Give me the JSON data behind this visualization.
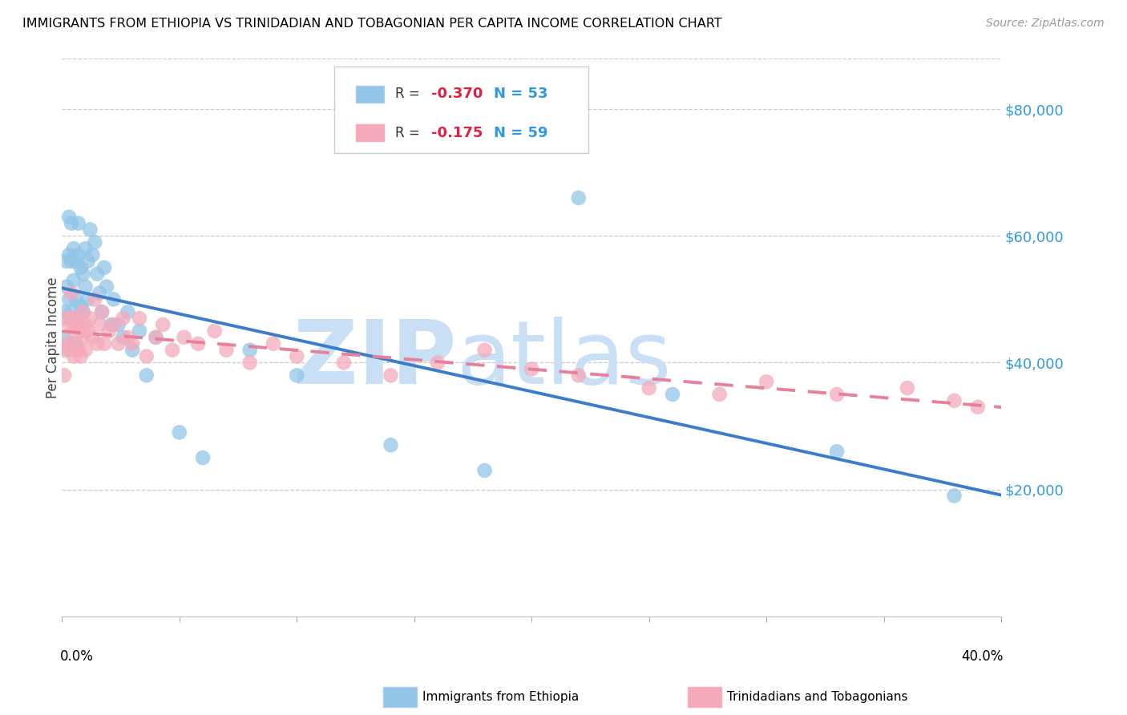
{
  "title": "IMMIGRANTS FROM ETHIOPIA VS TRINIDADIAN AND TOBAGONIAN PER CAPITA INCOME CORRELATION CHART",
  "source": "Source: ZipAtlas.com",
  "ylabel": "Per Capita Income",
  "yticks": [
    20000,
    40000,
    60000,
    80000
  ],
  "ytick_labels": [
    "$20,000",
    "$40,000",
    "$60,000",
    "$80,000"
  ],
  "xlim": [
    0.0,
    0.4
  ],
  "ylim": [
    0,
    88000
  ],
  "legend_label1": "Immigrants from Ethiopia",
  "legend_label2": "Trinidadians and Tobagonians",
  "r1": "-0.370",
  "n1": "53",
  "r2": "-0.175",
  "n2": "59",
  "color_blue": "#92C5E8",
  "color_pink": "#F4AABB",
  "line_color_blue": "#3B7DC8",
  "line_color_pink": "#E8809A",
  "ethiopia_x": [
    0.001,
    0.001,
    0.002,
    0.002,
    0.003,
    0.003,
    0.003,
    0.004,
    0.004,
    0.004,
    0.005,
    0.005,
    0.005,
    0.005,
    0.006,
    0.006,
    0.007,
    0.007,
    0.008,
    0.008,
    0.009,
    0.009,
    0.01,
    0.01,
    0.011,
    0.011,
    0.012,
    0.013,
    0.014,
    0.015,
    0.016,
    0.017,
    0.018,
    0.019,
    0.021,
    0.022,
    0.024,
    0.026,
    0.028,
    0.03,
    0.033,
    0.036,
    0.04,
    0.05,
    0.06,
    0.08,
    0.1,
    0.14,
    0.18,
    0.22,
    0.26,
    0.33,
    0.38
  ],
  "ethiopia_y": [
    48000,
    44000,
    56000,
    52000,
    63000,
    57000,
    50000,
    62000,
    56000,
    48000,
    58000,
    53000,
    47000,
    43000,
    56000,
    50000,
    62000,
    57000,
    55000,
    49000,
    54000,
    48000,
    58000,
    52000,
    56000,
    50000,
    61000,
    57000,
    59000,
    54000,
    51000,
    48000,
    55000,
    52000,
    46000,
    50000,
    46000,
    44000,
    48000,
    42000,
    45000,
    38000,
    44000,
    29000,
    25000,
    42000,
    38000,
    27000,
    23000,
    66000,
    35000,
    26000,
    19000
  ],
  "tt_x": [
    0.001,
    0.001,
    0.002,
    0.002,
    0.003,
    0.003,
    0.004,
    0.004,
    0.005,
    0.005,
    0.006,
    0.006,
    0.007,
    0.007,
    0.008,
    0.008,
    0.009,
    0.009,
    0.01,
    0.01,
    0.011,
    0.012,
    0.013,
    0.014,
    0.015,
    0.016,
    0.017,
    0.018,
    0.02,
    0.022,
    0.024,
    0.026,
    0.028,
    0.03,
    0.033,
    0.036,
    0.04,
    0.043,
    0.047,
    0.052,
    0.058,
    0.065,
    0.07,
    0.08,
    0.09,
    0.1,
    0.12,
    0.14,
    0.16,
    0.18,
    0.2,
    0.22,
    0.25,
    0.28,
    0.3,
    0.33,
    0.36,
    0.38,
    0.39
  ],
  "tt_y": [
    42000,
    38000,
    47000,
    43000,
    46000,
    42000,
    51000,
    47000,
    45000,
    41000,
    47000,
    43000,
    46000,
    42000,
    45000,
    41000,
    48000,
    44000,
    46000,
    42000,
    45000,
    47000,
    44000,
    50000,
    43000,
    46000,
    48000,
    43000,
    45000,
    46000,
    43000,
    47000,
    44000,
    43000,
    47000,
    41000,
    44000,
    46000,
    42000,
    44000,
    43000,
    45000,
    42000,
    40000,
    43000,
    41000,
    40000,
    38000,
    40000,
    42000,
    39000,
    38000,
    36000,
    35000,
    37000,
    35000,
    36000,
    34000,
    33000
  ]
}
